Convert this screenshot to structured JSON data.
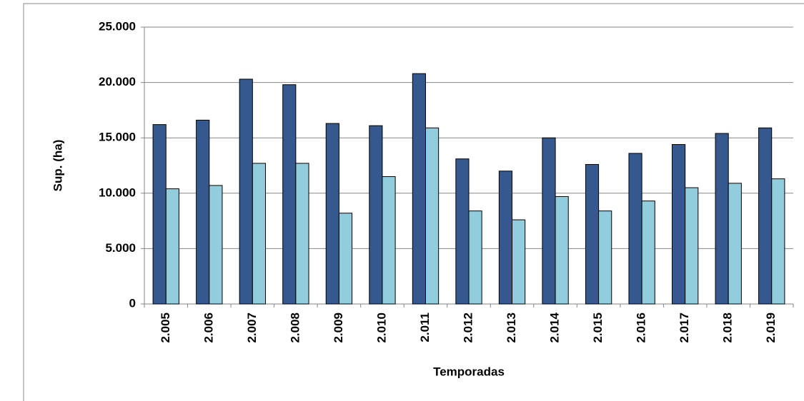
{
  "chart_data": {
    "type": "bar",
    "x_label": "Temporadas",
    "y_label": "Sup. (ha)",
    "categories": [
      "2.005",
      "2.006",
      "2.007",
      "2.008",
      "2.009",
      "2.010",
      "2.011",
      "2.012",
      "2.013",
      "2.014",
      "2.015",
      "2.016",
      "2.017",
      "2.018",
      "2.019"
    ],
    "series": [
      {
        "color": "#35598f",
        "values": [
          16200,
          16600,
          20300,
          19800,
          16300,
          16100,
          20800,
          13100,
          12000,
          15000,
          12600,
          13600,
          14400,
          15400,
          15900
        ]
      },
      {
        "color": "#92cddd",
        "values": [
          10400,
          10700,
          12700,
          12700,
          8200,
          11500,
          15900,
          8400,
          7600,
          9700,
          8400,
          9300,
          10500,
          10900,
          11300
        ]
      }
    ],
    "ylim": [
      0,
      25000
    ],
    "yticks": [
      0,
      {
        "value": 5000,
        "label": "5.000"
      },
      {
        "value": 10000,
        "label": "10.000"
      },
      {
        "value": 15000,
        "label": "15.000"
      },
      {
        "value": 20000,
        "label": "20.000"
      },
      {
        "value": 25000,
        "label": "25.000"
      }
    ],
    "grid": true
  }
}
